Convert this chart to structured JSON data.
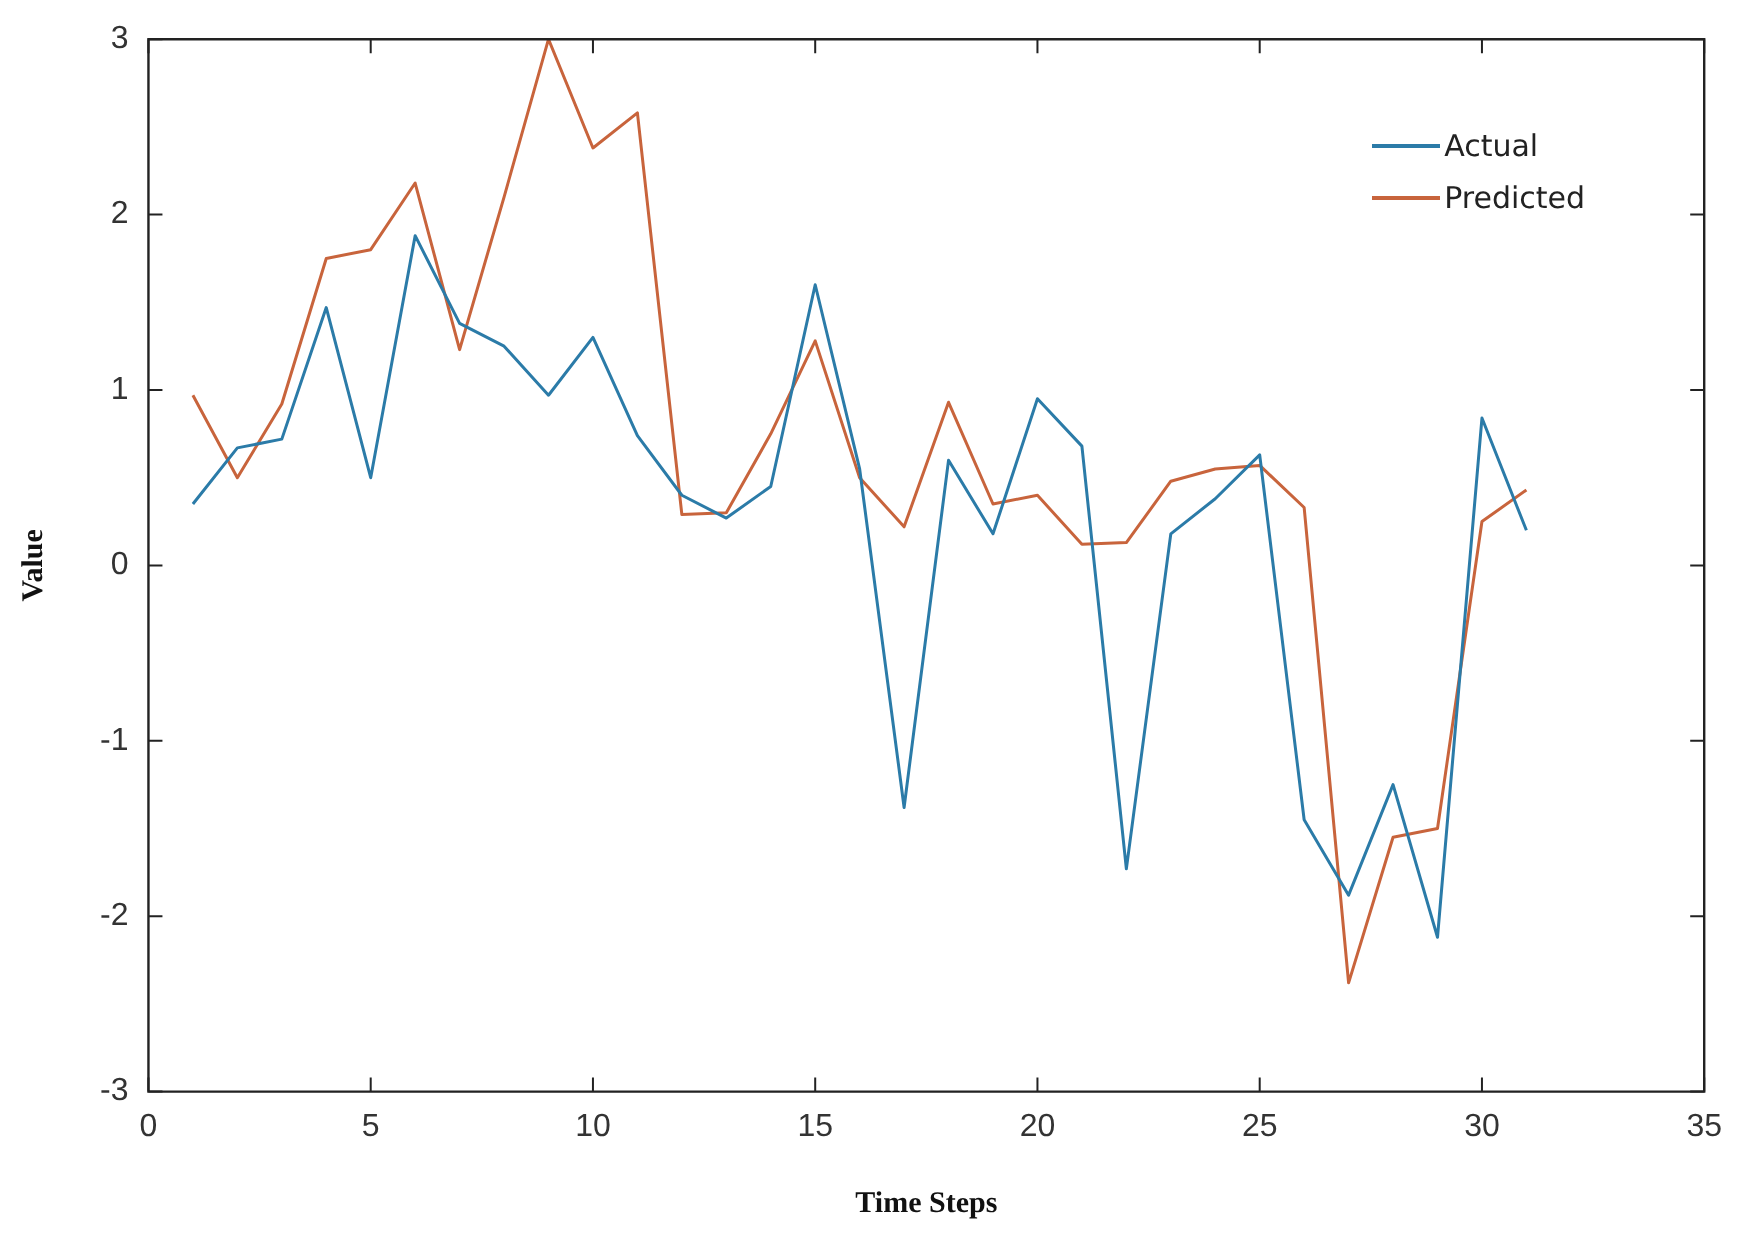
{
  "chart_data": {
    "type": "line",
    "xlabel": "Time Steps",
    "ylabel": "Value",
    "x": [
      1,
      2,
      3,
      4,
      5,
      6,
      7,
      8,
      9,
      10,
      11,
      12,
      13,
      14,
      15,
      16,
      17,
      18,
      19,
      20,
      21,
      22,
      23,
      24,
      25,
      26,
      27,
      28,
      29,
      30,
      31
    ],
    "series": [
      {
        "name": "Actual",
        "color": "#2b7ba8",
        "values": [
          0.35,
          0.67,
          0.72,
          1.47,
          0.5,
          1.88,
          1.38,
          1.25,
          0.97,
          1.3,
          0.74,
          0.4,
          0.27,
          0.45,
          1.6,
          0.55,
          -1.38,
          0.6,
          0.18,
          0.95,
          0.68,
          -1.73,
          0.18,
          0.38,
          0.63,
          -1.45,
          -1.88,
          -1.25,
          -2.12,
          0.84,
          0.2
        ]
      },
      {
        "name": "Predicted",
        "color": "#c8643c",
        "values": [
          0.97,
          0.5,
          0.92,
          1.75,
          1.8,
          2.18,
          1.23,
          2.1,
          3.0,
          2.38,
          2.58,
          0.29,
          0.3,
          0.75,
          1.28,
          0.5,
          0.22,
          0.93,
          0.35,
          0.4,
          0.12,
          0.13,
          0.48,
          0.55,
          0.57,
          0.33,
          -2.38,
          -1.55,
          -1.5,
          0.25,
          0.43
        ]
      }
    ],
    "xlim": [
      0,
      35
    ],
    "xticks": [
      0,
      5,
      10,
      15,
      20,
      25,
      30,
      35
    ],
    "ylim": [
      -3,
      3
    ],
    "yticks": [
      -3,
      -2,
      -1,
      0,
      1,
      2,
      3
    ],
    "grid": false,
    "legend": "top right",
    "marker": "none",
    "line_style": "solid"
  }
}
